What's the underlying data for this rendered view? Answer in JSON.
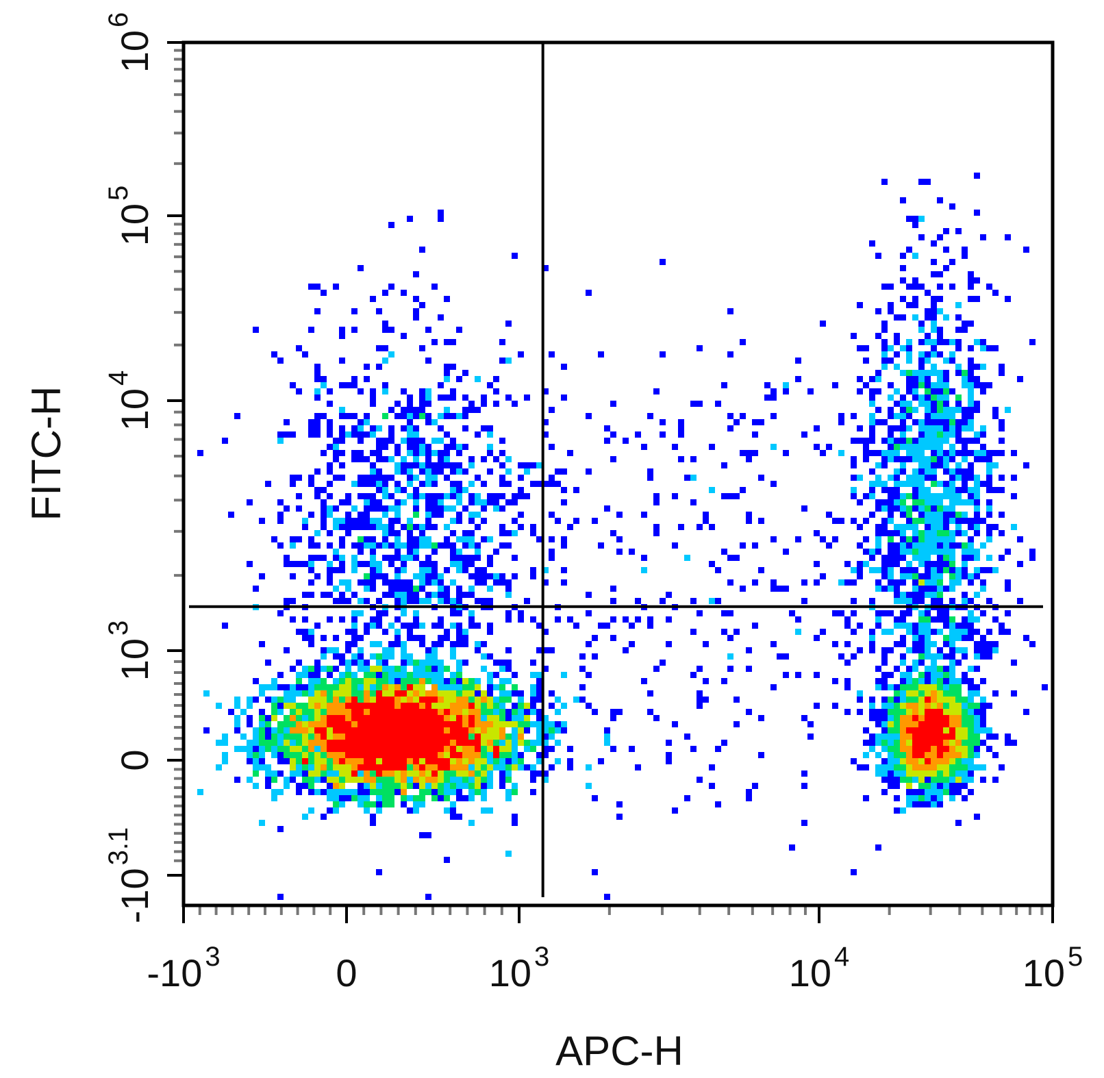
{
  "chart_data": {
    "type": "scatter",
    "subtype": "flow-cytometry density dot plot (biexponential axes) with quadrant gates",
    "xlabel": "APC-H",
    "ylabel": "FITC-H",
    "x_scale": "biexponential",
    "y_scale": "biexponential",
    "xlim": [
      -1000,
      100000
    ],
    "ylim": [
      -1259,
      1000000
    ],
    "x_ticks": [
      {
        "value": -1000,
        "base": "-10",
        "exp": "3"
      },
      {
        "value": 0,
        "base": "0",
        "exp": ""
      },
      {
        "value": 1000,
        "base": "10",
        "exp": "3"
      },
      {
        "value": 10000,
        "base": "10",
        "exp": "4"
      },
      {
        "value": 100000,
        "base": "10",
        "exp": "5"
      }
    ],
    "y_ticks": [
      {
        "value": -1259,
        "base": "-10",
        "exp": "3.1"
      },
      {
        "value": 0,
        "base": "0",
        "exp": ""
      },
      {
        "value": 1000,
        "base": "10",
        "exp": "3"
      },
      {
        "value": 10000,
        "base": "10",
        "exp": "4"
      },
      {
        "value": 100000,
        "base": "10",
        "exp": "5"
      },
      {
        "value": 1000000,
        "base": "10",
        "exp": "6"
      }
    ],
    "quadrant_gates": {
      "x": 1200,
      "y": 1500
    },
    "populations": [
      {
        "name": "APC-negative FITC-low",
        "x_center": 300,
        "y_center": 300,
        "peak_density": "high"
      },
      {
        "name": "APC-negative FITC-high",
        "x_center": 300,
        "y_center": 3000,
        "peak_density": "low"
      },
      {
        "name": "APC-positive FITC-low",
        "x_center": 30000,
        "y_center": 300,
        "peak_density": "medium"
      },
      {
        "name": "APC-positive FITC-high",
        "x_center": 30000,
        "y_center": 4000,
        "peak_density": "low"
      },
      {
        "name": "intermediate scatter",
        "x_center": 4000,
        "y_center": 1500,
        "peak_density": "sparse"
      }
    ],
    "density_colormap": [
      "#0000ff",
      "#00c8ff",
      "#00e060",
      "#c8e600",
      "#ff9900",
      "#ff0000"
    ],
    "grid": false,
    "legend": "none"
  }
}
